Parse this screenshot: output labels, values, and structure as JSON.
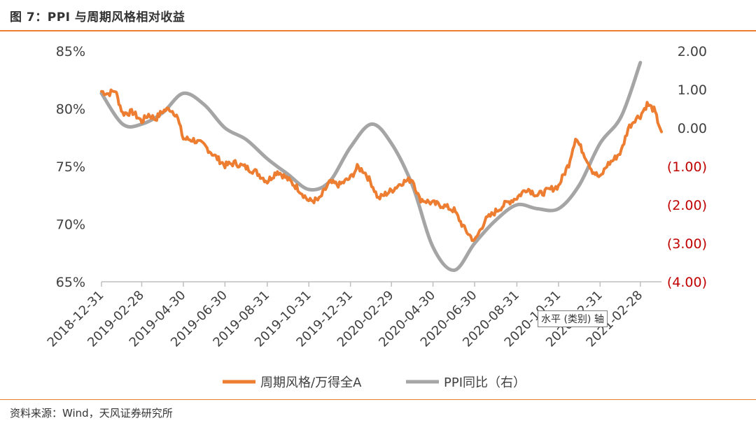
{
  "figure": {
    "title": "图 7：PPI 与周期风格相对收益",
    "source": "资料来源：Wind，天风证券研究所",
    "tooltip": "水平 (类别) 轴"
  },
  "colors": {
    "accent": "#ED7D31",
    "series1": "#ED7D31",
    "series2": "#A5A5A5",
    "negative_tick": "#C00000",
    "axis": "#404040"
  },
  "chart_data": {
    "type": "line",
    "x_type": "date",
    "x_tick_labels": [
      "2018-12-31",
      "2019-02-28",
      "2019-04-30",
      "2019-06-30",
      "2019-08-31",
      "2019-10-31",
      "2019-12-31",
      "2020-02-29",
      "2020-04-30",
      "2020-06-30",
      "2020-08-31",
      "2020-10-31",
      "2020-12-31",
      "2021-02-28"
    ],
    "x_range": [
      "2018-12-31",
      "2021-03-31"
    ],
    "y_left": {
      "ticks": [
        "65%",
        "70%",
        "75%",
        "80%",
        "85%"
      ],
      "min": 65,
      "max": 85
    },
    "y_right": {
      "ticks": [
        "(4.00)",
        "(3.00)",
        "(2.00)",
        "(1.00)",
        "0.00",
        "1.00",
        "2.00"
      ],
      "min": -4,
      "max": 2
    },
    "series": [
      {
        "name": "周期风格/万得全A",
        "axis": "left",
        "color": "#ED7D31",
        "points": [
          [
            "2018-12-31",
            81.5
          ],
          [
            "2019-01-10",
            81.3
          ],
          [
            "2019-01-20",
            81.6
          ],
          [
            "2019-01-31",
            79.6
          ],
          [
            "2019-02-15",
            79.7
          ],
          [
            "2019-02-28",
            78.9
          ],
          [
            "2019-03-10",
            79.5
          ],
          [
            "2019-03-20",
            79.1
          ],
          [
            "2019-03-31",
            79.8
          ],
          [
            "2019-04-10",
            80.0
          ],
          [
            "2019-04-20",
            79.5
          ],
          [
            "2019-04-30",
            77.4
          ],
          [
            "2019-05-15",
            77.3
          ],
          [
            "2019-05-31",
            76.8
          ],
          [
            "2019-06-15",
            75.9
          ],
          [
            "2019-06-30",
            75.1
          ],
          [
            "2019-07-15",
            75.3
          ],
          [
            "2019-07-31",
            74.9
          ],
          [
            "2019-08-15",
            74.5
          ],
          [
            "2019-08-31",
            73.7
          ],
          [
            "2019-09-15",
            74.6
          ],
          [
            "2019-09-30",
            73.9
          ],
          [
            "2019-10-15",
            73.1
          ],
          [
            "2019-10-31",
            72.0
          ],
          [
            "2019-11-15",
            72.1
          ],
          [
            "2019-11-30",
            73.6
          ],
          [
            "2019-12-15",
            73.4
          ],
          [
            "2019-12-31",
            74.0
          ],
          [
            "2020-01-10",
            74.9
          ],
          [
            "2020-01-20",
            74.6
          ],
          [
            "2020-01-31",
            73.5
          ],
          [
            "2020-02-10",
            72.2
          ],
          [
            "2020-02-20",
            72.6
          ],
          [
            "2020-02-29",
            72.9
          ],
          [
            "2020-03-15",
            73.6
          ],
          [
            "2020-03-31",
            73.9
          ],
          [
            "2020-04-10",
            72.2
          ],
          [
            "2020-04-30",
            71.8
          ],
          [
            "2020-05-15",
            71.6
          ],
          [
            "2020-05-31",
            71.2
          ],
          [
            "2020-06-15",
            69.6
          ],
          [
            "2020-06-30",
            68.5
          ],
          [
            "2020-07-15",
            70.3
          ],
          [
            "2020-07-31",
            71.1
          ],
          [
            "2020-08-15",
            71.8
          ],
          [
            "2020-08-31",
            72.3
          ],
          [
            "2020-09-15",
            73.1
          ],
          [
            "2020-09-30",
            72.5
          ],
          [
            "2020-10-15",
            72.9
          ],
          [
            "2020-10-31",
            73.3
          ],
          [
            "2020-11-15",
            75.2
          ],
          [
            "2020-11-25",
            77.5
          ],
          [
            "2020-12-10",
            75.8
          ],
          [
            "2020-12-20",
            74.6
          ],
          [
            "2020-12-31",
            74.0
          ],
          [
            "2021-01-10",
            75.1
          ],
          [
            "2021-01-20",
            75.6
          ],
          [
            "2021-01-31",
            76.3
          ],
          [
            "2021-02-10",
            78.3
          ],
          [
            "2021-02-20",
            79.1
          ],
          [
            "2021-02-28",
            79.4
          ],
          [
            "2021-03-10",
            80.4
          ],
          [
            "2021-03-20",
            79.9
          ],
          [
            "2021-03-31",
            78.0
          ]
        ]
      },
      {
        "name": "PPI同比（右）",
        "axis": "right",
        "color": "#A5A5A5",
        "points": [
          [
            "2018-12-31",
            0.9
          ],
          [
            "2019-01-31",
            0.1
          ],
          [
            "2019-02-28",
            0.1
          ],
          [
            "2019-03-31",
            0.4
          ],
          [
            "2019-04-30",
            0.9
          ],
          [
            "2019-05-31",
            0.6
          ],
          [
            "2019-06-30",
            0.0
          ],
          [
            "2019-07-31",
            -0.3
          ],
          [
            "2019-08-31",
            -0.8
          ],
          [
            "2019-09-30",
            -1.2
          ],
          [
            "2019-10-31",
            -1.6
          ],
          [
            "2019-11-30",
            -1.4
          ],
          [
            "2019-12-31",
            -0.5
          ],
          [
            "2020-01-31",
            0.1
          ],
          [
            "2020-02-29",
            -0.4
          ],
          [
            "2020-03-31",
            -1.5
          ],
          [
            "2020-04-30",
            -3.1
          ],
          [
            "2020-05-31",
            -3.7
          ],
          [
            "2020-06-30",
            -3.0
          ],
          [
            "2020-07-31",
            -2.4
          ],
          [
            "2020-08-31",
            -2.0
          ],
          [
            "2020-09-30",
            -2.1
          ],
          [
            "2020-10-31",
            -2.1
          ],
          [
            "2020-11-30",
            -1.5
          ],
          [
            "2020-12-31",
            -0.4
          ],
          [
            "2021-01-31",
            0.3
          ],
          [
            "2021-02-28",
            1.7
          ]
        ]
      }
    ],
    "legend": [
      "周期风格/万得全A",
      "PPI同比（右）"
    ],
    "legend_position": "bottom",
    "grid": false
  }
}
